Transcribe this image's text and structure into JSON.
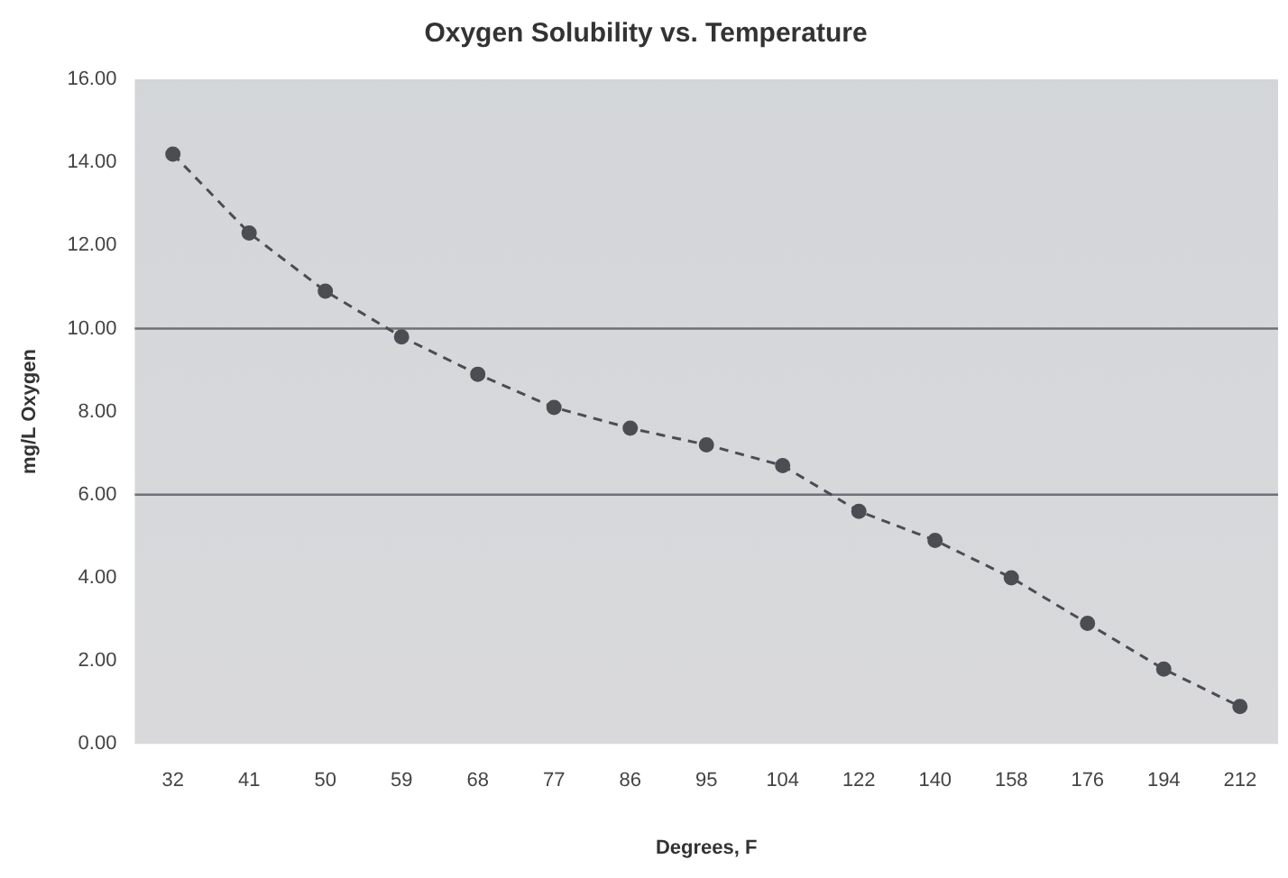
{
  "chart_data": {
    "type": "line",
    "title": "Oxygen Solubility vs. Temperature",
    "xlabel": "Degrees, F",
    "ylabel": "mg/L Oxygen",
    "categories": [
      "32",
      "41",
      "50",
      "59",
      "68",
      "77",
      "86",
      "95",
      "104",
      "122",
      "140",
      "158",
      "176",
      "194",
      "212"
    ],
    "series": [
      {
        "color": "#4a4d52",
        "values": [
          14.2,
          12.3,
          10.9,
          9.8,
          8.9,
          8.1,
          7.6,
          7.2,
          6.7,
          5.6,
          4.9,
          4.0,
          2.9,
          1.8,
          0.9
        ]
      }
    ],
    "ylim": [
      0,
      16
    ],
    "yticks": [
      {
        "value": 0,
        "label": "0.00"
      },
      {
        "value": 2,
        "label": "2.00"
      },
      {
        "value": 4,
        "label": "4.00"
      },
      {
        "value": 6,
        "label": "6.00"
      },
      {
        "value": 8,
        "label": "8.00"
      },
      {
        "value": 10,
        "label": "10.00"
      },
      {
        "value": 12,
        "label": "12.00"
      },
      {
        "value": 14,
        "label": "14.00"
      },
      {
        "value": 16,
        "label": "16.00"
      }
    ],
    "ref_lines": [
      {
        "axis": "y",
        "value": 10,
        "color": "#6d7175"
      },
      {
        "axis": "y",
        "value": 6,
        "color": "#6d7175"
      }
    ],
    "grid": false,
    "legend": false,
    "marker": "circle",
    "line_style": "dashed"
  }
}
